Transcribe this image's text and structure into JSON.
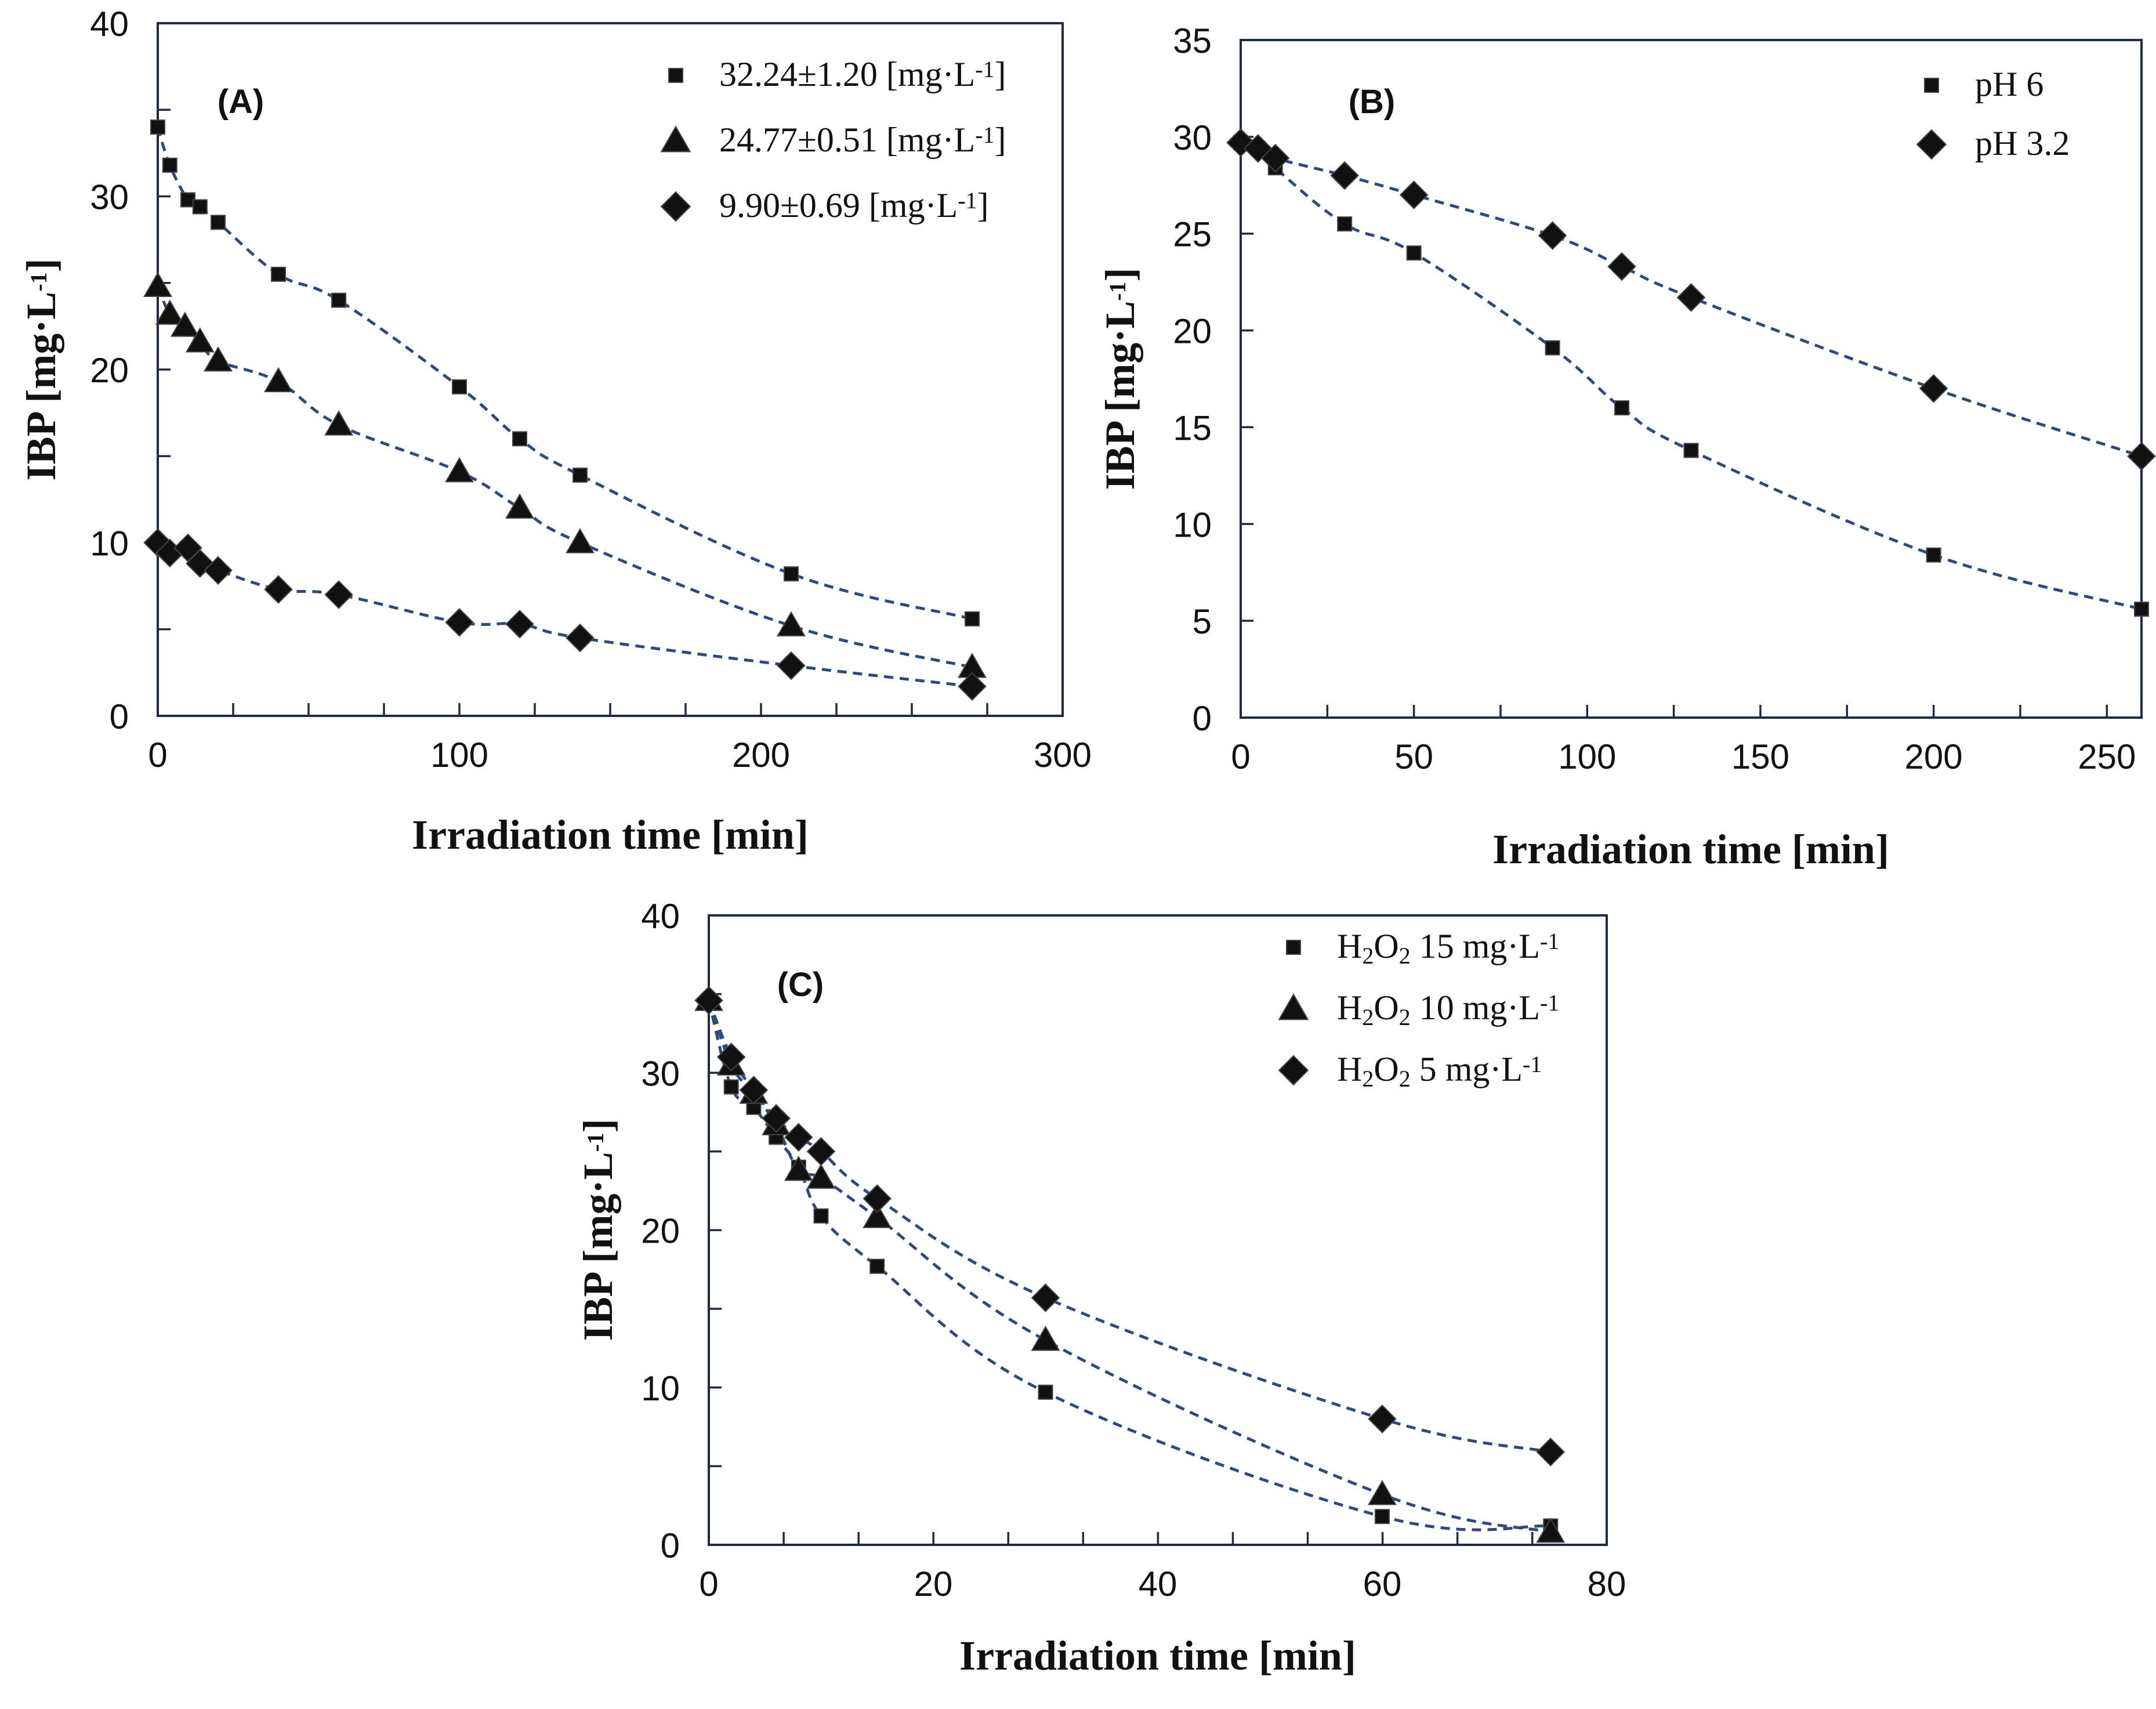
{
  "chart_data": [
    {
      "type": "scatter",
      "panel_label": "(A)",
      "xlabel": "Irradiation time [min]",
      "ylabel": "IBP [mg·L⁻¹]",
      "xlim": [
        0,
        300
      ],
      "ylim": [
        0,
        40
      ],
      "xticks": [
        0,
        100,
        200,
        300
      ],
      "yticks": [
        0,
        10,
        20,
        30,
        40
      ],
      "x_minor_step": 25,
      "y_minor_step": 5,
      "legend_position": "top-right",
      "series": [
        {
          "name": "32.24±1.20 [mg·L⁻¹]",
          "marker": "square",
          "x": [
            0,
            4,
            10,
            14,
            20,
            40,
            60,
            100,
            120,
            140,
            210,
            270
          ],
          "y": [
            34,
            31.8,
            29.8,
            29.4,
            28.5,
            25.5,
            24,
            19,
            16,
            13.9,
            8.2,
            5.6
          ]
        },
        {
          "name": "24.77±0.51 [mg·L⁻¹]",
          "marker": "triangle",
          "x": [
            0,
            4,
            9,
            14,
            20,
            40,
            60,
            100,
            120,
            140,
            210,
            270
          ],
          "y": [
            24.8,
            23.2,
            22.5,
            21.6,
            20.5,
            19.3,
            16.8,
            14.1,
            12,
            10,
            5.2,
            2.8
          ]
        },
        {
          "name": "9.90±0.69 [mg·L⁻¹]",
          "marker": "diamond",
          "x": [
            0,
            4,
            10,
            14,
            20,
            40,
            60,
            100,
            120,
            140,
            210,
            270
          ],
          "y": [
            10,
            9.4,
            9.7,
            8.8,
            8.4,
            7.3,
            7,
            5.4,
            5.3,
            4.5,
            2.9,
            1.7
          ]
        }
      ]
    },
    {
      "type": "scatter",
      "panel_label": "(B)",
      "xlabel": "Irradiation time [min]",
      "ylabel": "IBP [mg·L⁻¹]",
      "xlim": [
        0,
        260
      ],
      "ylim": [
        0,
        35
      ],
      "xticks": [
        0,
        50,
        100,
        150,
        200,
        250
      ],
      "yticks": [
        0,
        5,
        10,
        15,
        20,
        25,
        30,
        35
      ],
      "x_minor_step": 25,
      "y_minor_step": 5,
      "legend_position": "top-right",
      "series": [
        {
          "name": "pH 6",
          "marker": "square",
          "x": [
            0,
            5,
            10,
            30,
            50,
            90,
            110,
            130,
            200,
            260
          ],
          "y": [
            29.7,
            29.4,
            28.4,
            25.5,
            24,
            19.1,
            16,
            13.8,
            8.4,
            5.6
          ]
        },
        {
          "name": "pH 3.2",
          "marker": "diamond",
          "x": [
            0,
            5,
            10,
            30,
            50,
            90,
            110,
            130,
            200,
            260
          ],
          "y": [
            29.7,
            29.4,
            28.9,
            28,
            27,
            24.9,
            23.3,
            21.7,
            17,
            13.5
          ]
        }
      ]
    },
    {
      "type": "scatter",
      "panel_label": "(C)",
      "xlabel": "Irradiation time [min]",
      "ylabel": "IBP [mg·L⁻¹]",
      "xlim": [
        0,
        80
      ],
      "ylim": [
        0,
        40
      ],
      "xticks": [
        0,
        20,
        40,
        60,
        80
      ],
      "yticks": [
        0,
        10,
        20,
        30,
        40
      ],
      "x_minor_step": 6.67,
      "y_minor_step": 5,
      "legend_position": "top-right",
      "series": [
        {
          "name": "H₂O₂ 15 mg·L⁻¹",
          "marker": "square",
          "x": [
            0,
            2,
            4,
            6,
            8,
            10,
            15,
            30,
            60,
            75
          ],
          "y": [
            34.6,
            29.1,
            27.8,
            25.9,
            24,
            20.9,
            17.7,
            9.7,
            1.8,
            1.2
          ]
        },
        {
          "name": "H₂O₂ 10 mg·L⁻¹",
          "marker": "triangle",
          "x": [
            0,
            2,
            4,
            6,
            8,
            10,
            15,
            30,
            60,
            75
          ],
          "y": [
            34.6,
            30.5,
            28.7,
            26.7,
            23.8,
            23.3,
            20.8,
            13,
            3.2,
            0.8
          ]
        },
        {
          "name": "H₂O₂ 5 mg·L⁻¹",
          "marker": "diamond",
          "x": [
            0,
            2,
            4,
            6,
            8,
            10,
            15,
            30,
            60,
            75
          ],
          "y": [
            34.6,
            31,
            28.9,
            27.1,
            25.9,
            25,
            22,
            15.7,
            8,
            5.9
          ]
        }
      ]
    }
  ],
  "colors": {
    "axis": "#1f2a44",
    "fit_line": "#2f4a78",
    "marker": "#111111"
  }
}
